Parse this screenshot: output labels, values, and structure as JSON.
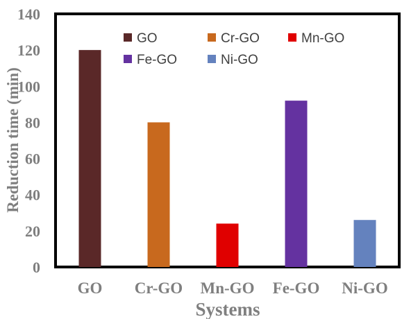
{
  "chart_data": {
    "type": "bar",
    "title": "",
    "xlabel": "Systems",
    "ylabel": "Reduction time (min)",
    "ylim": [
      0,
      140
    ],
    "yticks": [
      0,
      20,
      40,
      60,
      80,
      100,
      120,
      140
    ],
    "grid": false,
    "legend_position": "top",
    "categories": [
      "GO",
      "Cr-GO",
      "Mn-GO",
      "Fe-GO",
      "Ni-GO"
    ],
    "values": [
      120,
      80,
      24,
      92,
      26
    ],
    "colors": [
      "#5a2828",
      "#c8691e",
      "#e00000",
      "#6432a0",
      "#6482be"
    ],
    "legend": [
      {
        "label": "GO",
        "color": "#5a2828"
      },
      {
        "label": "Cr-GO",
        "color": "#c8691e"
      },
      {
        "label": "Mn-GO",
        "color": "#e00000"
      },
      {
        "label": "Fe-GO",
        "color": "#6432a0"
      },
      {
        "label": "Ni-GO",
        "color": "#6482be"
      }
    ]
  }
}
